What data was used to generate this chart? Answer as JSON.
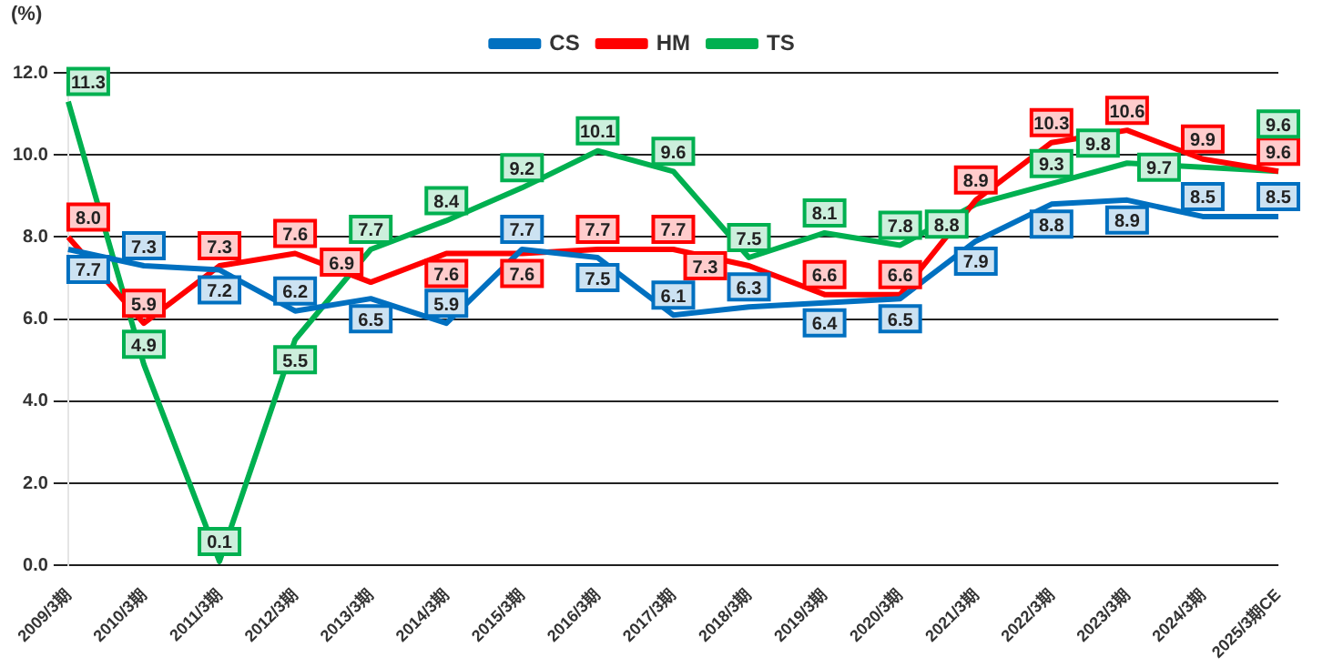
{
  "chart_data": {
    "type": "line",
    "ylabel": "(%)",
    "categories": [
      "2009/3期",
      "2010/3期",
      "2011/3期",
      "2012/3期",
      "2013/3期",
      "2014/3期",
      "2015/3期",
      "2016/3期",
      "2017/3期",
      "2018/3期",
      "2019/3期",
      "2020/3期",
      "2021/3期",
      "2022/3期",
      "2023/3期",
      "2024/3期",
      "2025/3期CE"
    ],
    "series": [
      {
        "name": "CS",
        "color": "#0070c0",
        "values": [
          7.7,
          7.3,
          7.2,
          6.2,
          6.5,
          5.9,
          7.7,
          7.5,
          6.1,
          6.3,
          6.4,
          6.5,
          7.9,
          8.8,
          8.9,
          8.5,
          8.5
        ],
        "value_labels": [
          "7.7",
          "7.3",
          "7.2",
          "6.2",
          "6.5",
          "5.9",
          "7.7",
          "7.5",
          "6.1",
          "6.3",
          "6.4",
          "6.5",
          "7.9",
          "8.8",
          "8.9",
          "8.5",
          "8.5"
        ]
      },
      {
        "name": "HM",
        "color": "#ff0000",
        "values": [
          8.0,
          5.9,
          7.3,
          7.6,
          6.9,
          7.6,
          7.6,
          7.7,
          7.7,
          7.3,
          6.6,
          6.6,
          8.9,
          10.3,
          10.6,
          9.9,
          9.6
        ],
        "value_labels": [
          "8.0",
          "5.9",
          "7.3",
          "7.6",
          "6.9",
          "7.6",
          "7.6",
          "7.7",
          "7.7",
          "7.3",
          "6.6",
          "6.6",
          "8.9",
          "10.3",
          "10.6",
          "9.9",
          "9.6"
        ]
      },
      {
        "name": "TS",
        "color": "#00b050",
        "values": [
          11.3,
          4.9,
          0.1,
          5.5,
          7.7,
          8.4,
          9.2,
          10.1,
          9.6,
          7.5,
          8.1,
          7.8,
          8.8,
          9.3,
          9.8,
          9.7,
          9.6
        ],
        "value_labels": [
          "11.3",
          "4.9",
          "0.1",
          "5.5",
          "7.7",
          "8.4",
          "9.2",
          "10.1",
          "9.6",
          "7.5",
          "8.1",
          "7.8",
          "8.8",
          "9.3",
          "9.8",
          "9.7",
          "9.6"
        ]
      }
    ],
    "ylim": [
      0,
      12
    ],
    "yticks": [
      {
        "value": 0,
        "label": "0.0"
      },
      {
        "value": 2,
        "label": "2.0"
      },
      {
        "value": 4,
        "label": "4.0"
      },
      {
        "value": 6,
        "label": "6.0"
      },
      {
        "value": 8,
        "label": "8.0"
      },
      {
        "value": 10,
        "label": "10.0"
      },
      {
        "value": 12,
        "label": "12.0"
      }
    ],
    "grid": "y",
    "legend": "top",
    "line_style": "solid"
  }
}
